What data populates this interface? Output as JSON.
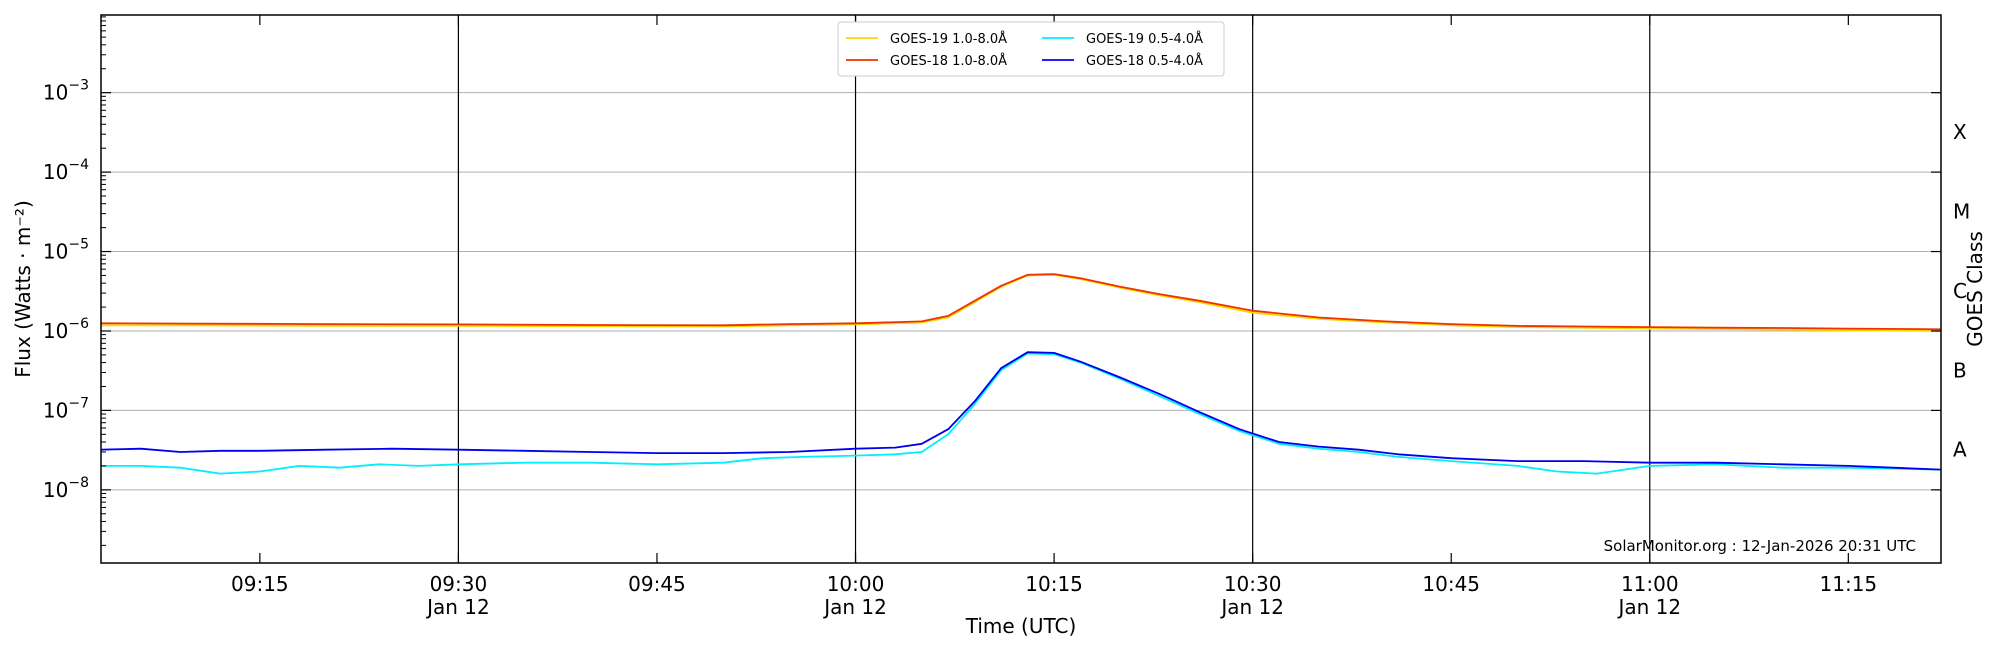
{
  "chart_data": {
    "type": "line",
    "xlabel": "Time (UTC)",
    "ylabel": "Flux (Watts · m⁻²)",
    "y2label": "GOES Class",
    "yscale": "log",
    "ylim": [
      1.2e-09,
      0.0095
    ],
    "xlim": [
      "09:03",
      "11:22"
    ],
    "xdate": "Jan 12",
    "grid": "horizontal",
    "legend_position": "top-center",
    "credit": "SolarMonitor.org : 12-Jan-2026 20:31 UTC",
    "y_ticks": [
      {
        "base": "10",
        "exp": "−3",
        "value": 0.001
      },
      {
        "base": "10",
        "exp": "−4",
        "value": 0.0001
      },
      {
        "base": "10",
        "exp": "−5",
        "value": 1e-05
      },
      {
        "base": "10",
        "exp": "−6",
        "value": 1e-06
      },
      {
        "base": "10",
        "exp": "−7",
        "value": 1e-07
      },
      {
        "base": "10",
        "exp": "−8",
        "value": 1e-08
      }
    ],
    "x_ticks": [
      {
        "time": "09:15",
        "date": ""
      },
      {
        "time": "09:30",
        "date": "Jan 12"
      },
      {
        "time": "09:45",
        "date": ""
      },
      {
        "time": "10:00",
        "date": "Jan 12"
      },
      {
        "time": "10:15",
        "date": ""
      },
      {
        "time": "10:30",
        "date": "Jan 12"
      },
      {
        "time": "10:45",
        "date": ""
      },
      {
        "time": "11:00",
        "date": "Jan 12"
      },
      {
        "time": "11:15",
        "date": ""
      }
    ],
    "vertical_lines": [
      "09:30",
      "10:00",
      "10:30",
      "11:00"
    ],
    "goes_classes": [
      {
        "label": "X",
        "value": 0.0001
      },
      {
        "label": "M",
        "value": 1e-05
      },
      {
        "label": "C",
        "value": 1e-06
      },
      {
        "label": "B",
        "value": 1e-07
      },
      {
        "label": "A",
        "value": 1e-08
      }
    ],
    "series": [
      {
        "name": "GOES-19 1.0-8.0Å",
        "color": "#ffd700",
        "points": [
          [
            "09:03",
            1.18e-06
          ],
          [
            "09:10",
            1.18e-06
          ],
          [
            "09:20",
            1.16e-06
          ],
          [
            "09:30",
            1.16e-06
          ],
          [
            "09:40",
            1.15e-06
          ],
          [
            "09:50",
            1.14e-06
          ],
          [
            "09:55",
            1.18e-06
          ],
          [
            "10:00",
            1.21e-06
          ],
          [
            "10:05",
            1.28e-06
          ],
          [
            "10:07",
            1.48e-06
          ],
          [
            "10:09",
            2.3e-06
          ],
          [
            "10:11",
            3.6e-06
          ],
          [
            "10:13",
            5e-06
          ],
          [
            "10:15",
            5.1e-06
          ],
          [
            "10:17",
            4.5e-06
          ],
          [
            "10:20",
            3.5e-06
          ],
          [
            "10:23",
            2.8e-06
          ],
          [
            "10:26",
            2.3e-06
          ],
          [
            "10:30",
            1.7e-06
          ],
          [
            "10:35",
            1.42e-06
          ],
          [
            "10:40",
            1.28e-06
          ],
          [
            "10:45",
            1.18e-06
          ],
          [
            "10:50",
            1.12e-06
          ],
          [
            "10:55",
            1.1e-06
          ],
          [
            "11:00",
            1.07e-06
          ],
          [
            "11:05",
            1.06e-06
          ],
          [
            "11:10",
            1.04e-06
          ],
          [
            "11:15",
            1.02e-06
          ],
          [
            "11:22",
            1e-06
          ]
        ]
      },
      {
        "name": "GOES-18 1.0-8.0Å",
        "color": "#ee3300",
        "points": [
          [
            "09:03",
            1.25e-06
          ],
          [
            "09:10",
            1.24e-06
          ],
          [
            "09:20",
            1.22e-06
          ],
          [
            "09:30",
            1.21e-06
          ],
          [
            "09:40",
            1.19e-06
          ],
          [
            "09:50",
            1.18e-06
          ],
          [
            "09:55",
            1.22e-06
          ],
          [
            "10:00",
            1.25e-06
          ],
          [
            "10:05",
            1.32e-06
          ],
          [
            "10:07",
            1.55e-06
          ],
          [
            "10:09",
            2.4e-06
          ],
          [
            "10:11",
            3.7e-06
          ],
          [
            "10:13",
            5.1e-06
          ],
          [
            "10:15",
            5.2e-06
          ],
          [
            "10:17",
            4.6e-06
          ],
          [
            "10:20",
            3.6e-06
          ],
          [
            "10:23",
            2.9e-06
          ],
          [
            "10:26",
            2.4e-06
          ],
          [
            "10:30",
            1.8e-06
          ],
          [
            "10:35",
            1.48e-06
          ],
          [
            "10:40",
            1.32e-06
          ],
          [
            "10:45",
            1.22e-06
          ],
          [
            "10:50",
            1.16e-06
          ],
          [
            "10:55",
            1.14e-06
          ],
          [
            "11:00",
            1.12e-06
          ],
          [
            "11:05",
            1.1e-06
          ],
          [
            "11:10",
            1.09e-06
          ],
          [
            "11:15",
            1.07e-06
          ],
          [
            "11:22",
            1.05e-06
          ]
        ]
      },
      {
        "name": "GOES-19 0.5-4.0Å",
        "color": "#00eeff",
        "points": [
          [
            "09:03",
            2e-08
          ],
          [
            "09:06",
            2e-08
          ],
          [
            "09:09",
            1.9e-08
          ],
          [
            "09:12",
            1.6e-08
          ],
          [
            "09:15",
            1.7e-08
          ],
          [
            "09:18",
            2e-08
          ],
          [
            "09:21",
            1.9e-08
          ],
          [
            "09:24",
            2.1e-08
          ],
          [
            "09:27",
            2e-08
          ],
          [
            "09:30",
            2.1e-08
          ],
          [
            "09:35",
            2.2e-08
          ],
          [
            "09:40",
            2.2e-08
          ],
          [
            "09:45",
            2.1e-08
          ],
          [
            "09:50",
            2.2e-08
          ],
          [
            "09:53",
            2.5e-08
          ],
          [
            "09:56",
            2.6e-08
          ],
          [
            "10:00",
            2.7e-08
          ],
          [
            "10:03",
            2.8e-08
          ],
          [
            "10:05",
            3e-08
          ],
          [
            "10:07",
            5e-08
          ],
          [
            "10:09",
            1.2e-07
          ],
          [
            "10:11",
            3.2e-07
          ],
          [
            "10:13",
            5.2e-07
          ],
          [
            "10:15",
            5.1e-07
          ],
          [
            "10:17",
            4e-07
          ],
          [
            "10:20",
            2.5e-07
          ],
          [
            "10:23",
            1.5e-07
          ],
          [
            "10:26",
            9e-08
          ],
          [
            "10:29",
            5.5e-08
          ],
          [
            "10:32",
            3.8e-08
          ],
          [
            "10:35",
            3.3e-08
          ],
          [
            "10:38",
            3e-08
          ],
          [
            "10:41",
            2.6e-08
          ],
          [
            "10:45",
            2.3e-08
          ],
          [
            "10:50",
            2e-08
          ],
          [
            "10:53",
            1.7e-08
          ],
          [
            "10:56",
            1.6e-08
          ],
          [
            "11:00",
            2e-08
          ],
          [
            "11:05",
            2.1e-08
          ],
          [
            "11:10",
            1.9e-08
          ],
          [
            "11:15",
            1.9e-08
          ],
          [
            "11:22",
            1.8e-08
          ]
        ]
      },
      {
        "name": "GOES-18 0.5-4.0Å",
        "color": "#0000ee",
        "points": [
          [
            "09:03",
            3.2e-08
          ],
          [
            "09:06",
            3.3e-08
          ],
          [
            "09:09",
            3e-08
          ],
          [
            "09:12",
            3.1e-08
          ],
          [
            "09:15",
            3.1e-08
          ],
          [
            "09:20",
            3.2e-08
          ],
          [
            "09:25",
            3.3e-08
          ],
          [
            "09:30",
            3.2e-08
          ],
          [
            "09:35",
            3.1e-08
          ],
          [
            "09:40",
            3e-08
          ],
          [
            "09:45",
            2.9e-08
          ],
          [
            "09:50",
            2.9e-08
          ],
          [
            "09:55",
            3e-08
          ],
          [
            "10:00",
            3.3e-08
          ],
          [
            "10:03",
            3.4e-08
          ],
          [
            "10:05",
            3.8e-08
          ],
          [
            "10:07",
            5.8e-08
          ],
          [
            "10:09",
            1.3e-07
          ],
          [
            "10:11",
            3.4e-07
          ],
          [
            "10:13",
            5.4e-07
          ],
          [
            "10:15",
            5.3e-07
          ],
          [
            "10:17",
            4.1e-07
          ],
          [
            "10:20",
            2.6e-07
          ],
          [
            "10:23",
            1.6e-07
          ],
          [
            "10:26",
            9.5e-08
          ],
          [
            "10:29",
            5.8e-08
          ],
          [
            "10:32",
            4e-08
          ],
          [
            "10:35",
            3.5e-08
          ],
          [
            "10:38",
            3.2e-08
          ],
          [
            "10:41",
            2.8e-08
          ],
          [
            "10:45",
            2.5e-08
          ],
          [
            "10:50",
            2.3e-08
          ],
          [
            "10:55",
            2.3e-08
          ],
          [
            "11:00",
            2.2e-08
          ],
          [
            "11:05",
            2.2e-08
          ],
          [
            "11:10",
            2.1e-08
          ],
          [
            "11:15",
            2e-08
          ],
          [
            "11:22",
            1.8e-08
          ]
        ]
      }
    ]
  }
}
